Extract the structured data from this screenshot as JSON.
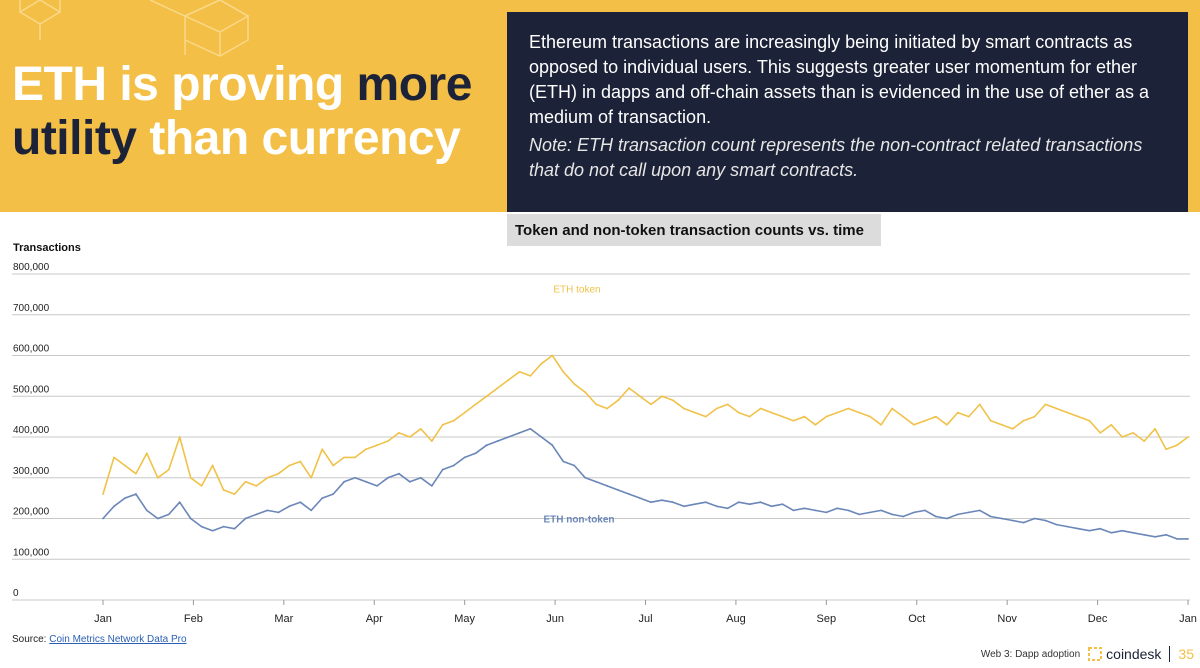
{
  "header": {
    "headline_part1": "ETH is proving ",
    "headline_part2": "more",
    "headline_part3": "utility",
    "headline_part4": " than currency",
    "summary": "Ethereum transactions are increasingly being initiated by smart contracts as opposed to individual users. This suggests greater user momentum for ether (ETH) in dapps and off-chain assets than is evidenced in the use of ether as a medium of transaction.",
    "note": "Note: ETH transaction count represents the non-contract related transactions that do not call upon any smart contracts."
  },
  "colors": {
    "accent": "#f4bf46",
    "navy": "#1c2237",
    "token_series": "#f0c24a",
    "non_token_series": "#6b86b8"
  },
  "chart_data": {
    "type": "line",
    "title": "Token and non-token transaction counts vs. time",
    "ylabel": "Transactions",
    "xlabel": "",
    "ylim": [
      0,
      800000
    ],
    "yticks": [
      "0",
      "100,000",
      "200,000",
      "300,000",
      "400,000",
      "500,000",
      "600,000",
      "700,000",
      "800,000"
    ],
    "x_tick_labels": [
      "Jan",
      "Feb",
      "Mar",
      "Apr",
      "May",
      "Jun",
      "Jul",
      "Aug",
      "Sep",
      "Oct",
      "Nov",
      "Dec",
      "Jan"
    ],
    "grid": true,
    "series": [
      {
        "name": "ETH token",
        "label": "ETH token",
        "values": [
          260000,
          350000,
          330000,
          310000,
          360000,
          300000,
          320000,
          400000,
          300000,
          280000,
          330000,
          270000,
          260000,
          290000,
          280000,
          300000,
          310000,
          330000,
          340000,
          300000,
          370000,
          330000,
          350000,
          350000,
          370000,
          380000,
          390000,
          410000,
          400000,
          420000,
          390000,
          430000,
          440000,
          460000,
          480000,
          500000,
          520000,
          540000,
          560000,
          550000,
          580000,
          600000,
          560000,
          530000,
          510000,
          480000,
          470000,
          490000,
          520000,
          500000,
          480000,
          500000,
          490000,
          470000,
          460000,
          450000,
          470000,
          480000,
          460000,
          450000,
          470000,
          460000,
          450000,
          440000,
          450000,
          430000,
          450000,
          460000,
          470000,
          460000,
          450000,
          430000,
          470000,
          450000,
          430000,
          440000,
          450000,
          430000,
          460000,
          450000,
          480000,
          440000,
          430000,
          420000,
          440000,
          450000,
          480000,
          470000,
          460000,
          450000,
          440000,
          410000,
          430000,
          400000,
          410000,
          390000,
          420000,
          370000,
          380000,
          400000
        ]
      },
      {
        "name": "ETH non-token",
        "label": "ETH non-token",
        "values": [
          200000,
          230000,
          250000,
          260000,
          220000,
          200000,
          210000,
          240000,
          200000,
          180000,
          170000,
          180000,
          175000,
          200000,
          210000,
          220000,
          215000,
          230000,
          240000,
          220000,
          250000,
          260000,
          290000,
          300000,
          290000,
          280000,
          300000,
          310000,
          290000,
          300000,
          280000,
          320000,
          330000,
          350000,
          360000,
          380000,
          390000,
          400000,
          410000,
          420000,
          400000,
          380000,
          340000,
          330000,
          300000,
          290000,
          280000,
          270000,
          260000,
          250000,
          240000,
          245000,
          240000,
          230000,
          235000,
          240000,
          230000,
          225000,
          240000,
          235000,
          240000,
          230000,
          235000,
          220000,
          225000,
          220000,
          215000,
          225000,
          220000,
          210000,
          215000,
          220000,
          210000,
          205000,
          215000,
          220000,
          205000,
          200000,
          210000,
          215000,
          220000,
          205000,
          200000,
          195000,
          190000,
          200000,
          195000,
          185000,
          180000,
          175000,
          170000,
          175000,
          165000,
          170000,
          165000,
          160000,
          155000,
          160000,
          150000,
          150000
        ]
      }
    ]
  },
  "footer": {
    "source_label": "Source:",
    "source_link": "Coin Metrics Network Data Pro",
    "section": "Web 3: Dapp adoption",
    "brand": "coindesk",
    "page_number": "35"
  }
}
